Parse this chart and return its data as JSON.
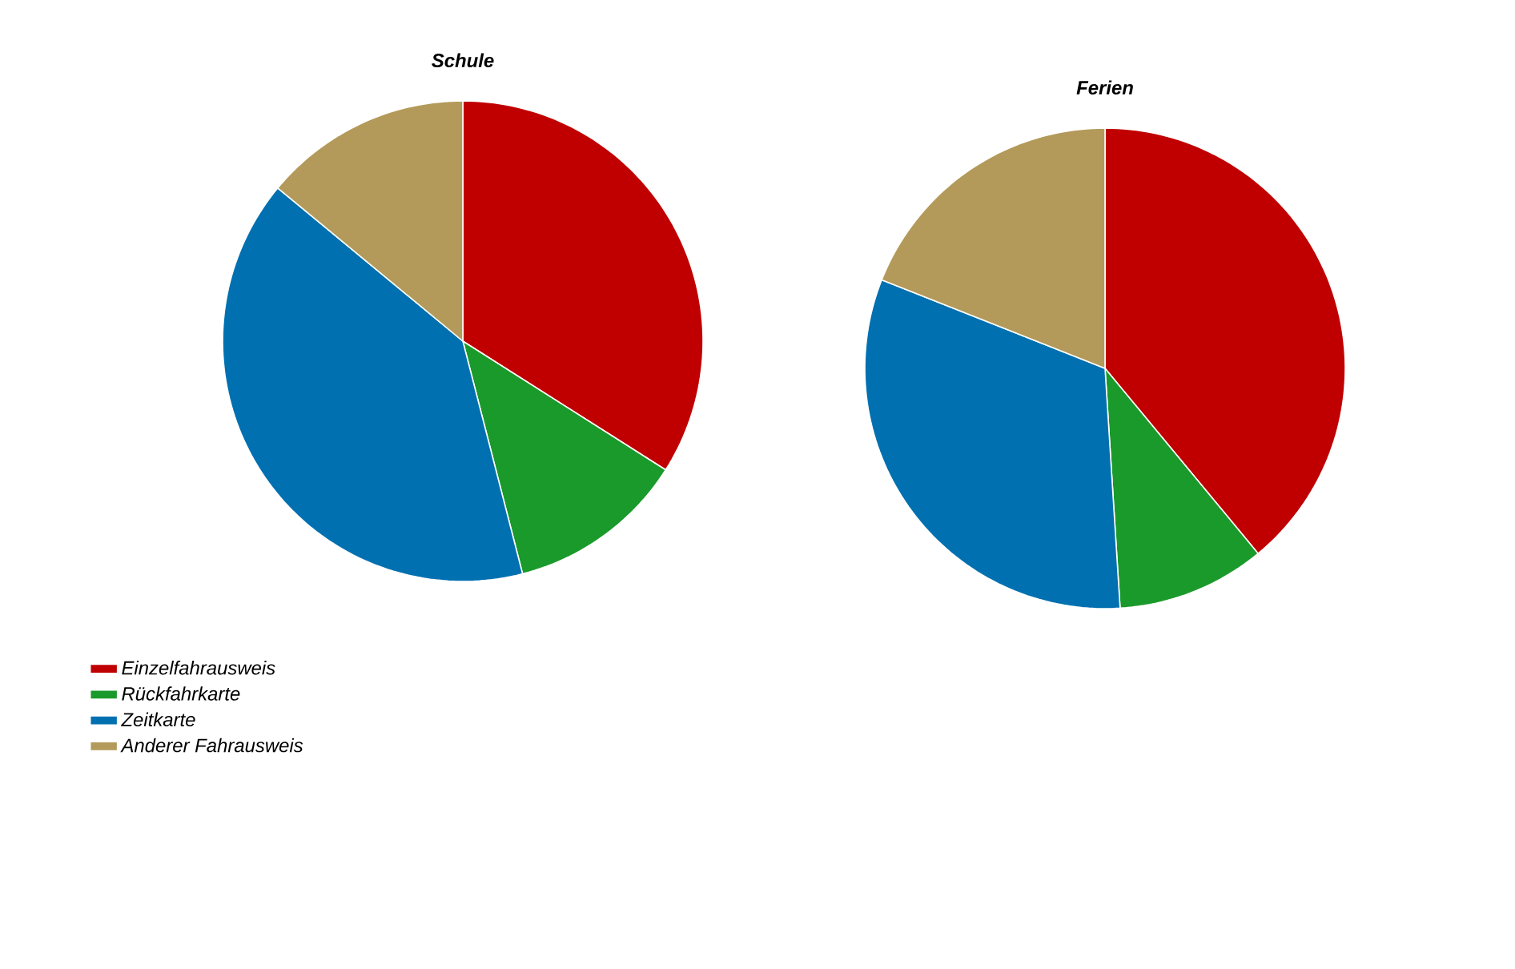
{
  "chart_data": [
    {
      "type": "pie",
      "title": "Schule",
      "categories": [
        "Einzelfahrausweis",
        "Rückfahrkarte",
        "Zeitkarte",
        "Anderer Fahrausweis"
      ],
      "values": [
        34,
        12,
        40,
        14
      ],
      "colors": [
        "#c00000",
        "#1a9a2a",
        "#0070b0",
        "#b39a5a"
      ],
      "legend": "bottom left"
    },
    {
      "type": "pie",
      "title": "Ferien",
      "values": [
        39,
        10,
        32,
        19
      ],
      "colors": [
        "#c00000",
        "#1a9a2a",
        "#0070b0",
        "#b39a5a"
      ]
    }
  ]
}
